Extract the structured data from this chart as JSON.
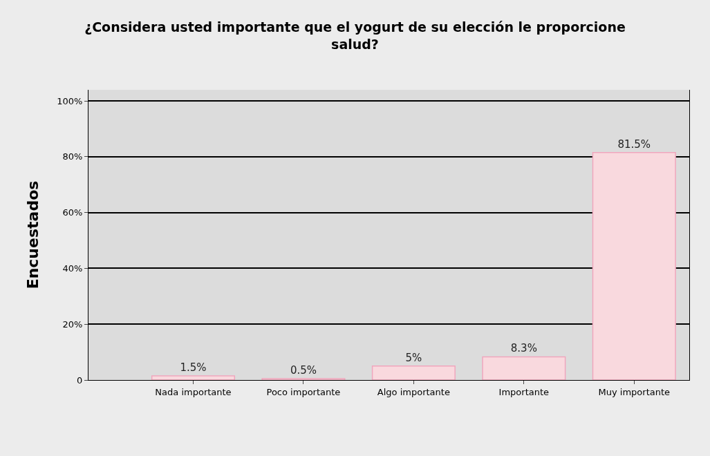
{
  "chart_data": {
    "type": "bar",
    "title": "¿Considera usted importante que el yogurt de su elección le proporcione salud?",
    "ylabel": "Encuestados",
    "categories": [
      "Nada importante",
      "Poco importante",
      "Algo importante",
      "Importante",
      "Muy importante"
    ],
    "values": [
      1.5,
      0.5,
      5,
      8.3,
      81.5
    ],
    "value_labels": [
      "1.5%",
      "0.5%",
      "5%",
      "8.3%",
      "81.5%"
    ],
    "color": "#f9d9de",
    "ylim": [
      0,
      104
    ],
    "yticks": [
      {
        "value": 0,
        "label": "0"
      },
      {
        "value": 20,
        "label": "20%"
      },
      {
        "value": 40,
        "label": "40%"
      },
      {
        "value": 60,
        "label": "60%"
      },
      {
        "value": 80,
        "label": "80%"
      },
      {
        "value": 100,
        "label": "100%"
      }
    ],
    "grid": "y"
  }
}
